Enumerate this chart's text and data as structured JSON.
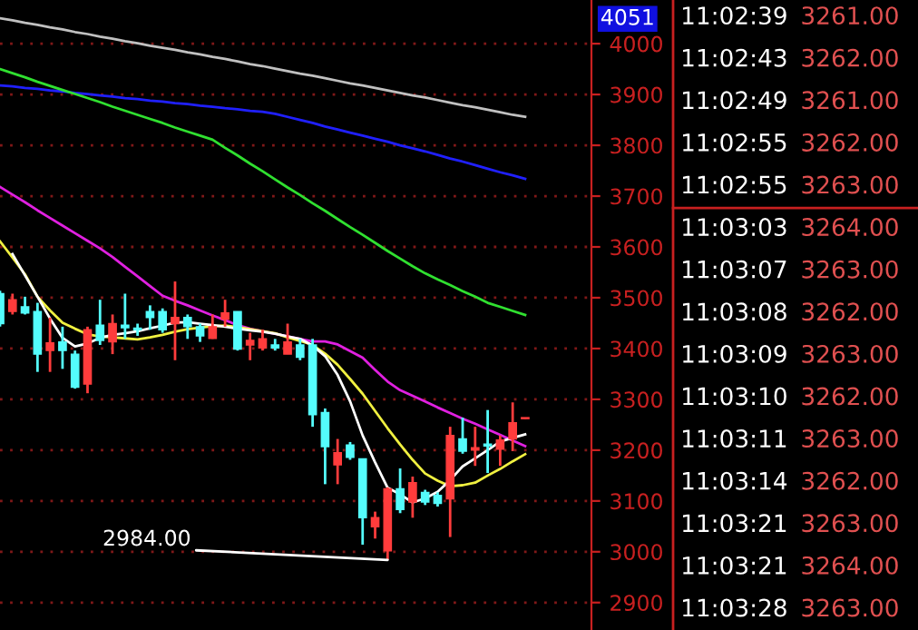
{
  "chart_data": {
    "type": "candlestick",
    "categories": [
      null,
      null,
      null,
      null,
      null,
      null,
      null,
      null,
      null,
      null,
      null,
      null,
      null,
      null,
      null,
      null,
      null,
      null,
      null,
      null,
      null,
      null,
      null,
      null,
      null,
      null,
      null,
      null,
      null,
      null,
      null,
      null,
      null,
      null,
      null,
      null,
      null,
      null,
      null,
      null,
      null,
      null,
      null
    ],
    "ohlc": [
      [
        3508,
        3514,
        3443,
        3449
      ],
      [
        3473,
        3508,
        3467,
        3496
      ],
      [
        3482,
        3502,
        3467,
        3470
      ],
      [
        3473,
        3490,
        3354,
        3389
      ],
      [
        3396,
        3461,
        3354,
        3411
      ],
      [
        3413,
        3443,
        3360,
        3396
      ],
      [
        3389,
        3396,
        3321,
        3324
      ],
      [
        3330,
        3443,
        3312,
        3437
      ],
      [
        3446,
        3496,
        3407,
        3416
      ],
      [
        3413,
        3467,
        3389,
        3449
      ],
      [
        3446,
        3508,
        3419,
        3441
      ],
      [
        3440,
        3449,
        3425,
        3437
      ],
      [
        3473,
        3485,
        3437,
        3461
      ],
      [
        3473,
        3479,
        3431,
        3437
      ],
      [
        3449,
        3532,
        3377,
        3461
      ],
      [
        3461,
        3467,
        3419,
        3443
      ],
      [
        3443,
        3449,
        3413,
        3425
      ],
      [
        3420,
        3467,
        3419,
        3443
      ],
      [
        3458,
        3496,
        3443,
        3470
      ],
      [
        3473,
        3473,
        3396,
        3399
      ],
      [
        3407,
        3431,
        3377,
        3416
      ],
      [
        3401,
        3437,
        3396,
        3419
      ],
      [
        3407,
        3419,
        3396,
        3401
      ],
      [
        3389,
        3449,
        3389,
        3413
      ],
      [
        3407,
        3419,
        3377,
        3383
      ],
      [
        3407,
        3419,
        3246,
        3270
      ],
      [
        3274,
        3282,
        3133,
        3207
      ],
      [
        3171,
        3222,
        3133,
        3195
      ],
      [
        3210,
        3216,
        3181,
        3186
      ],
      [
        3183,
        3183,
        3014,
        3067
      ],
      [
        3049,
        3079,
        3026,
        3067
      ],
      [
        3002,
        3127,
        2984,
        3124
      ],
      [
        3124,
        3164,
        3076,
        3083
      ],
      [
        3098,
        3148,
        3067,
        3136
      ],
      [
        3117,
        3122,
        3092,
        3098
      ],
      [
        3111,
        3117,
        3089,
        3095
      ],
      [
        3104,
        3246,
        3029,
        3229
      ],
      [
        3222,
        3264,
        3193,
        3198
      ],
      [
        3200,
        3246,
        3169,
        3205
      ],
      [
        3212,
        3279,
        3155,
        3208
      ],
      [
        3202,
        3229,
        3169,
        3220
      ],
      [
        3222,
        3294,
        3198,
        3254
      ],
      [
        3262,
        3264,
        3261,
        3264
      ]
    ],
    "colors": [
      "#54fcfc",
      "#ff3c3c",
      "#54fcfc",
      "#54fcfc",
      "#ff3c3c",
      "#54fcfc",
      "#54fcfc",
      "#ff3c3c",
      "#54fcfc",
      "#ff3c3c",
      "#54fcfc",
      "#54fcfc",
      "#54fcfc",
      "#54fcfc",
      "#ff3c3c",
      "#54fcfc",
      "#54fcfc",
      "#ff3c3c",
      "#ff3c3c",
      "#54fcfc",
      "#ff3c3c",
      "#ff3c3c",
      "#54fcfc",
      "#ff3c3c",
      "#54fcfc",
      "#54fcfc",
      "#54fcfc",
      "#ff3c3c",
      "#54fcfc",
      "#54fcfc",
      "#ff3c3c",
      "#ff3c3c",
      "#54fcfc",
      "#ff3c3c",
      "#54fcfc",
      "#54fcfc",
      "#ff3c3c",
      "#54fcfc",
      "#ff3c3c",
      "#54fcfc",
      "#ff3c3c",
      "#ff3c3c",
      "#ff3c3c"
    ],
    "series": [
      {
        "type": "line",
        "color": "#c0c0c0",
        "values": [
          4050,
          4046,
          4041,
          4037,
          4032,
          4028,
          4023,
          4019,
          4014,
          4010,
          4005,
          4001,
          3996,
          3992,
          3988,
          3983,
          3979,
          3974,
          3970,
          3965,
          3960,
          3956,
          3951,
          3946,
          3941,
          3937,
          3932,
          3927,
          3922,
          3918,
          3913,
          3908,
          3903,
          3898,
          3894,
          3889,
          3884,
          3879,
          3875,
          3870,
          3865,
          3860,
          3856
        ]
      },
      {
        "type": "line",
        "color": "#2020ff",
        "values": [
          3918,
          3916,
          3913,
          3911,
          3908,
          3906,
          3903,
          3901,
          3898,
          3896,
          3893,
          3891,
          3888,
          3886,
          3883,
          3881,
          3878,
          3876,
          3873,
          3871,
          3868,
          3866,
          3862,
          3856,
          3850,
          3844,
          3837,
          3831,
          3825,
          3819,
          3813,
          3807,
          3800,
          3794,
          3788,
          3781,
          3774,
          3768,
          3761,
          3754,
          3747,
          3741,
          3734
        ]
      },
      {
        "type": "line",
        "color": "#30e030",
        "values": [
          3950,
          3942,
          3934,
          3925,
          3917,
          3909,
          3901,
          3893,
          3885,
          3876,
          3868,
          3860,
          3852,
          3844,
          3835,
          3827,
          3819,
          3811,
          3795,
          3780,
          3764,
          3749,
          3733,
          3717,
          3702,
          3686,
          3671,
          3655,
          3639,
          3624,
          3608,
          3592,
          3577,
          3562,
          3548,
          3536,
          3525,
          3513,
          3502,
          3490,
          3482,
          3474,
          3466
        ]
      },
      {
        "type": "line",
        "color": "#e020e0",
        "values": [
          3718,
          3703,
          3688,
          3672,
          3657,
          3642,
          3627,
          3612,
          3597,
          3580,
          3561,
          3542,
          3523,
          3504,
          3494,
          3485,
          3475,
          3465,
          3456,
          3446,
          3439,
          3434,
          3429,
          3424,
          3419,
          3414,
          3414,
          3408,
          3395,
          3382,
          3358,
          3335,
          3318,
          3307,
          3296,
          3284,
          3273,
          3262,
          3252,
          3241,
          3230,
          3219,
          3208
        ]
      },
      {
        "type": "line",
        "color": "#f0f040",
        "values": [
          3611,
          3579,
          3546,
          3502,
          3475,
          3451,
          3439,
          3428,
          3424,
          3422,
          3420,
          3418,
          3422,
          3427,
          3433,
          3438,
          3441,
          3444,
          3445,
          3442,
          3438,
          3434,
          3430,
          3422,
          3415,
          3407,
          3390,
          3368,
          3340,
          3311,
          3277,
          3243,
          3211,
          3181,
          3154,
          3140,
          3129,
          3131,
          3136,
          3150,
          3163,
          3178,
          3192
        ]
      },
      {
        "type": "line",
        "color": "#ffffff",
        "values": [
          null,
          3586,
          3544,
          3502,
          3459,
          3421,
          3404,
          3410,
          3421,
          3427,
          3430,
          3434,
          3440,
          3445,
          3451,
          3452,
          3449,
          3446,
          3443,
          3439,
          3436,
          3433,
          3429,
          3424,
          3419,
          3406,
          3385,
          3348,
          3296,
          3229,
          3176,
          3126,
          3113,
          3097,
          3105,
          3118,
          3141,
          3168,
          3184,
          3200,
          3217,
          3224,
          3231
        ]
      }
    ],
    "ylim": [
      2846,
      4086
    ],
    "yticks": [
      2900,
      3000,
      3100,
      3200,
      3300,
      3400,
      3500,
      3600,
      3700,
      3800,
      3900,
      4000
    ],
    "tick_labels": "y",
    "grid": "y",
    "annotations": [
      "2984.00",
      "4051",
      "11:02:39",
      "3261.00",
      "11:02:43",
      "3262.00",
      "11:02:49",
      "3261.00",
      "11:02:55",
      "3262.00",
      "11:02:55",
      "3263.00",
      "11:03:03",
      "3264.00",
      "11:03:07",
      "3263.00",
      "11:03:08",
      "3262.00",
      "11:03:09",
      "3263.00",
      "11:03:10",
      "3262.00",
      "11:03:11",
      "3263.00",
      "11:03:14",
      "3262.00",
      "11:03:21",
      "3263.00",
      "11:03:21",
      "3264.00",
      "11:03:28",
      "3263.00"
    ]
  }
}
